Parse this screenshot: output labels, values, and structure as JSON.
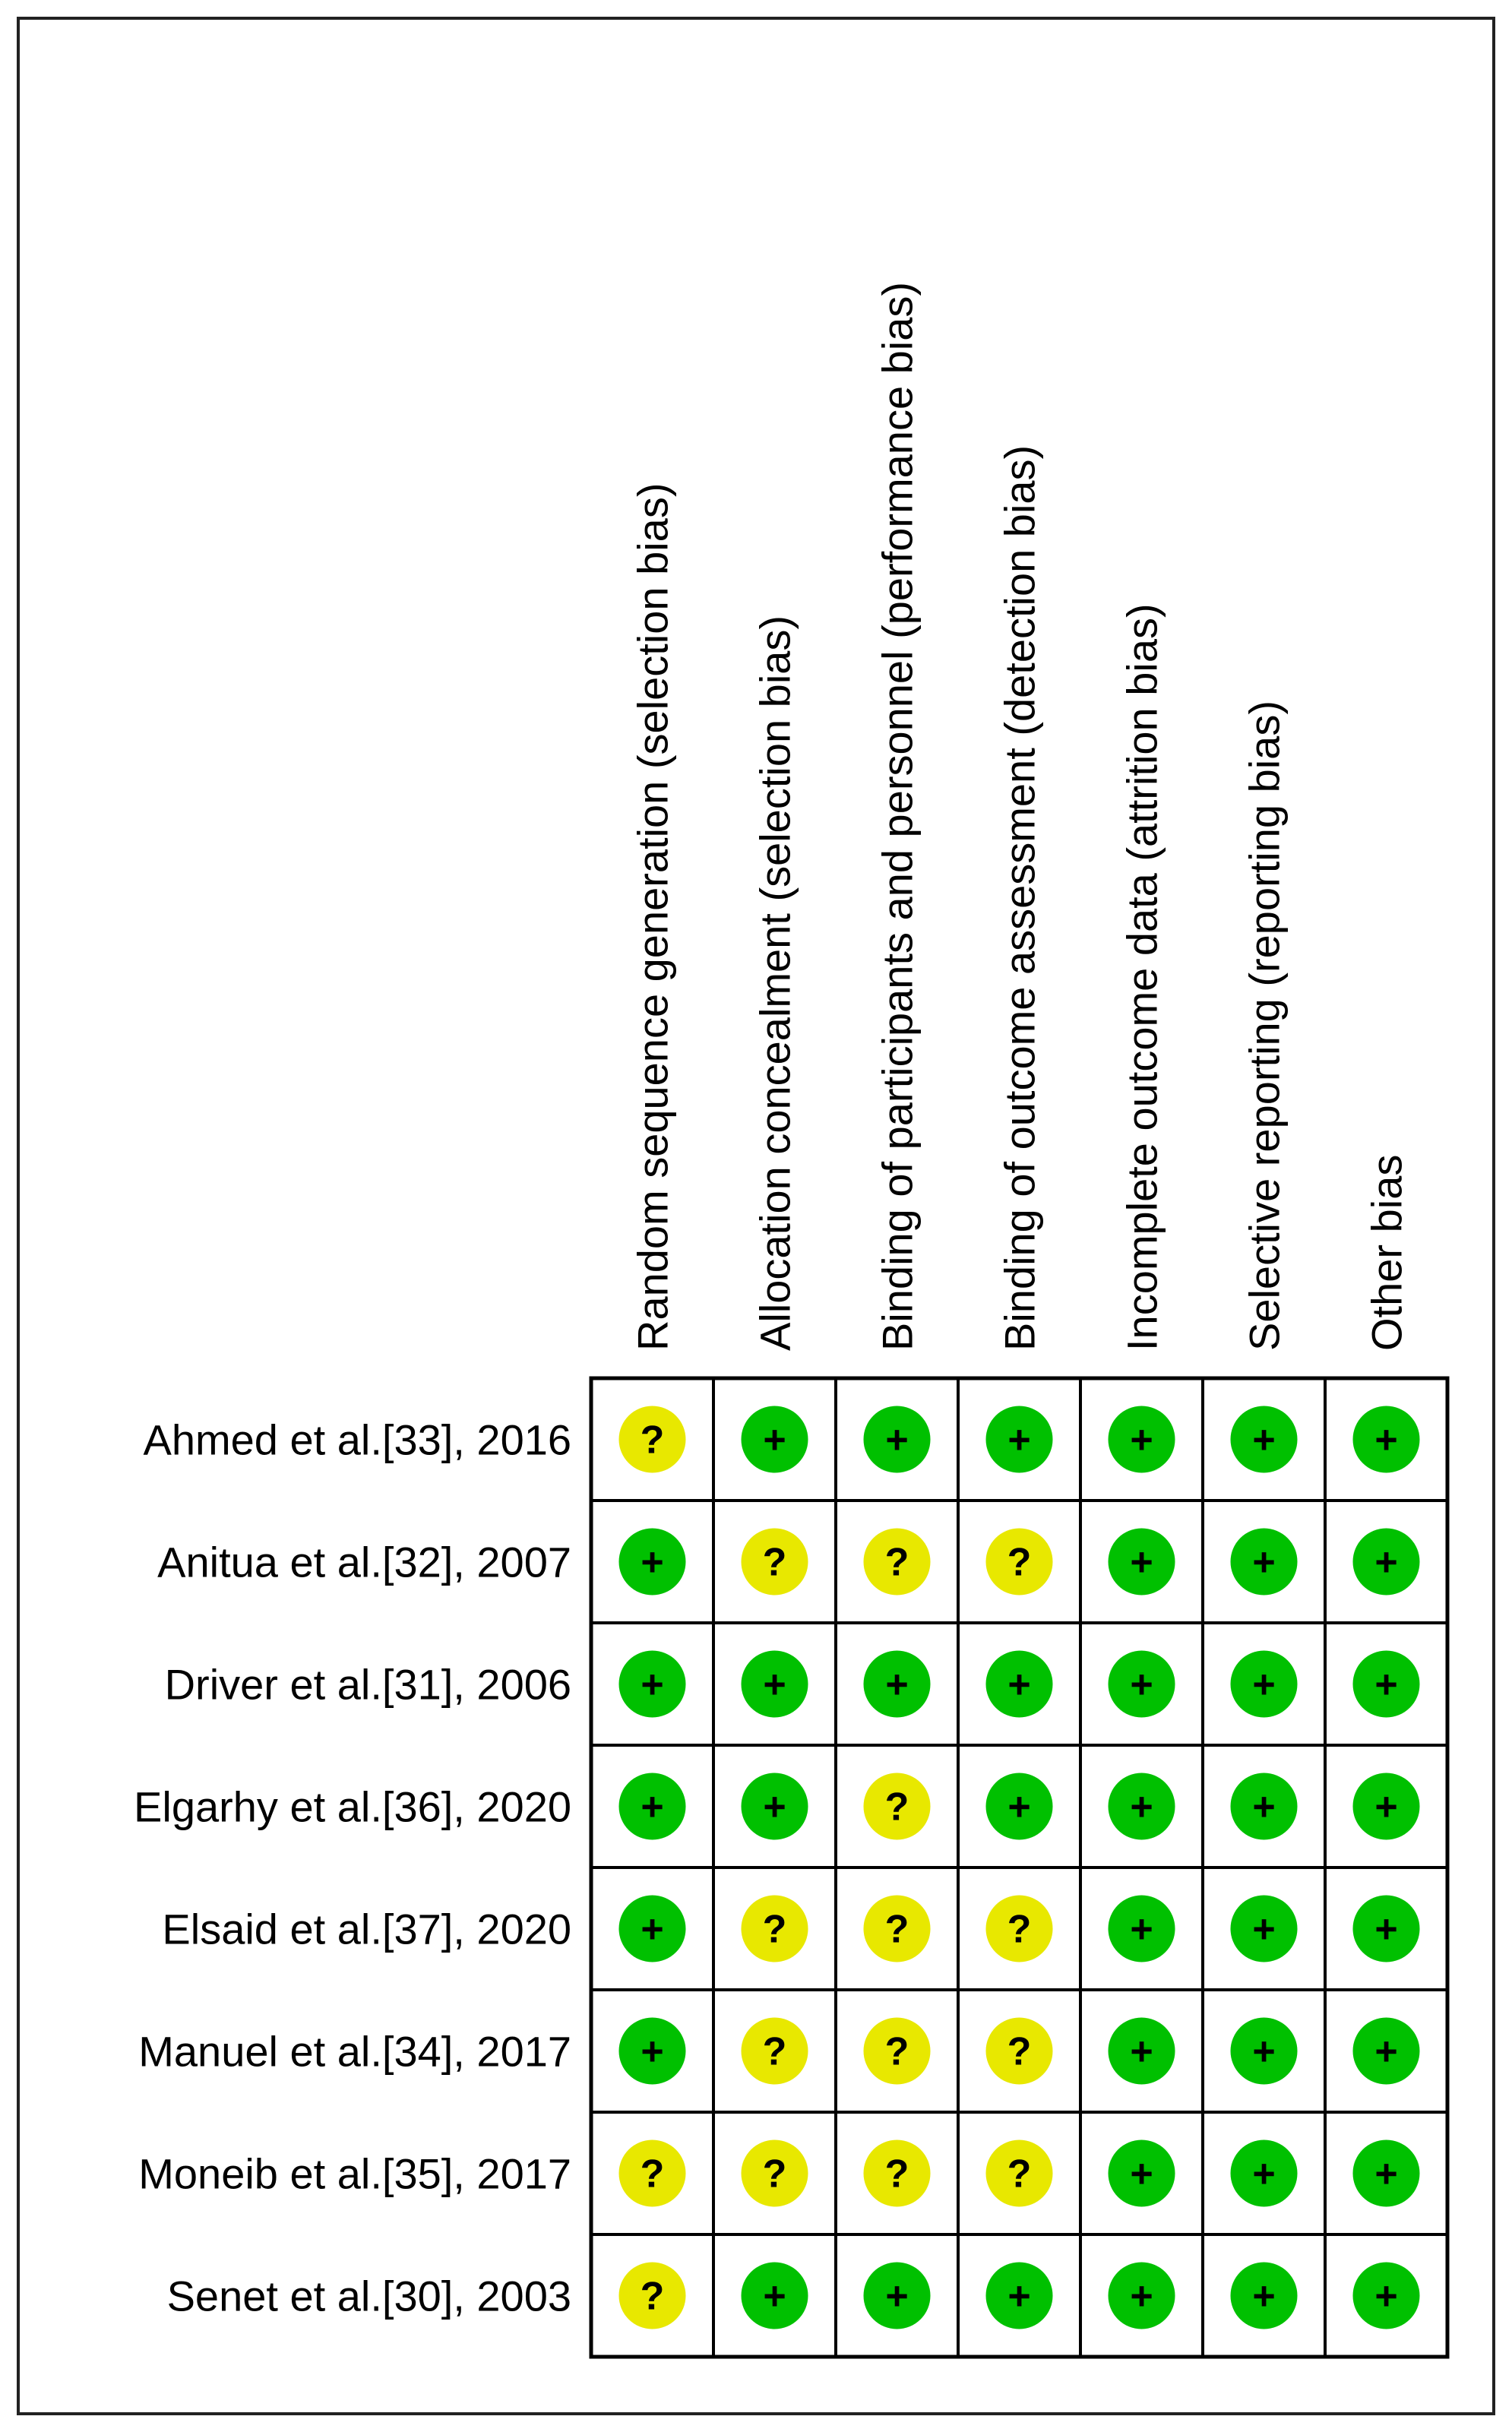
{
  "chart_data": {
    "type": "table",
    "columns": [
      "Random sequence generation (selection bias)",
      "Allocation concealment (selection bias)",
      "Binding of participants and personnel (performance bias)",
      "Binding of outcome assessment (detection bias)",
      "Incomplete outcome data (attrition bias)",
      "Selective reporting (reporting bias)",
      "Other bias"
    ],
    "rows": [
      {
        "study": "Ahmed et al.[33], 2016",
        "ratings": [
          "?",
          "+",
          "+",
          "+",
          "+",
          "+",
          "+"
        ]
      },
      {
        "study": "Anitua et al.[32], 2007",
        "ratings": [
          "+",
          "?",
          "?",
          "?",
          "+",
          "+",
          "+"
        ]
      },
      {
        "study": "Driver et al.[31], 2006",
        "ratings": [
          "+",
          "+",
          "+",
          "+",
          "+",
          "+",
          "+"
        ]
      },
      {
        "study": "Elgarhy et al.[36], 2020",
        "ratings": [
          "+",
          "+",
          "?",
          "+",
          "+",
          "+",
          "+"
        ]
      },
      {
        "study": "Elsaid et al.[37], 2020",
        "ratings": [
          "+",
          "?",
          "?",
          "?",
          "+",
          "+",
          "+"
        ]
      },
      {
        "study": "Manuel et al.[34], 2017",
        "ratings": [
          "+",
          "?",
          "?",
          "?",
          "+",
          "+",
          "+"
        ]
      },
      {
        "study": "Moneib et al.[35], 2017",
        "ratings": [
          "?",
          "?",
          "?",
          "?",
          "+",
          "+",
          "+"
        ]
      },
      {
        "study": "Senet et al.[30], 2003",
        "ratings": [
          "?",
          "+",
          "+",
          "+",
          "+",
          "+",
          "+"
        ]
      }
    ],
    "colors": {
      "+": "#00c000",
      "?": "#e8e800"
    }
  }
}
